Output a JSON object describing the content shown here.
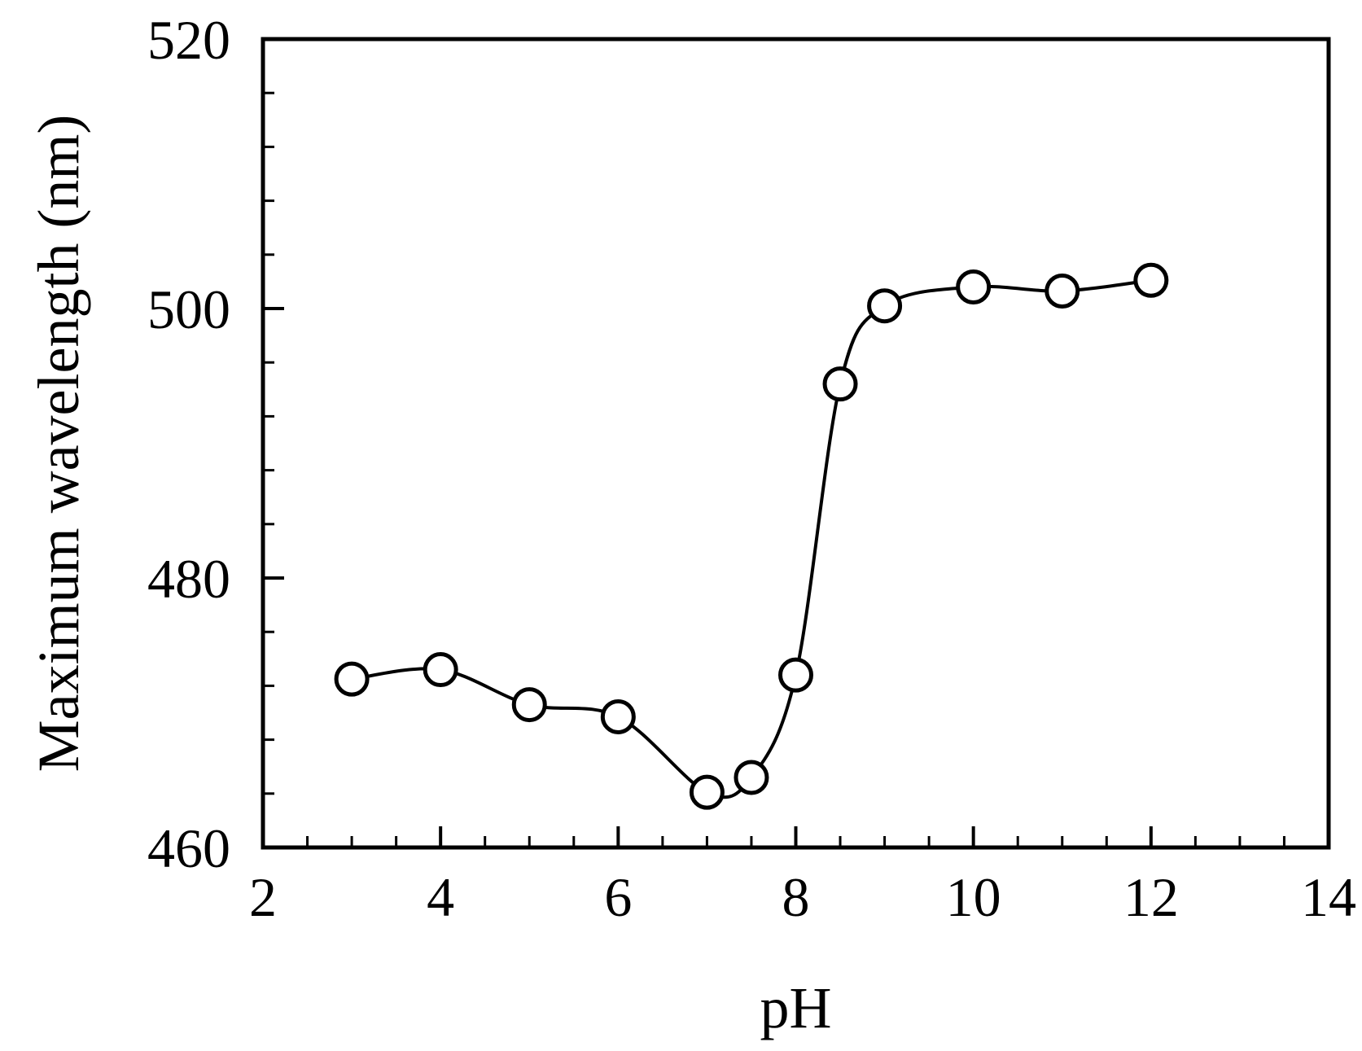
{
  "chart_data": {
    "type": "line",
    "title": "",
    "xlabel": "pH",
    "ylabel": "Maximum wavelength (nm)",
    "xlim": [
      2,
      14
    ],
    "ylim": [
      460,
      520
    ],
    "xticks": [
      2,
      4,
      6,
      8,
      10,
      12,
      14
    ],
    "yticks": [
      460,
      480,
      500,
      520
    ],
    "x_minor_step": 0.5,
    "y_minor_step": 4,
    "grid": false,
    "legend": "none",
    "line_color": "#000000",
    "marker": "open-circle",
    "series": [
      {
        "x": [
          3,
          4,
          5,
          6,
          7,
          7.5,
          8,
          8.5,
          9,
          10,
          11,
          12
        ],
        "values": [
          472.5,
          473.2,
          470.6,
          469.7,
          464.1,
          465.2,
          472.8,
          494.4,
          500.2,
          501.6,
          501.3,
          502.1
        ]
      }
    ]
  }
}
